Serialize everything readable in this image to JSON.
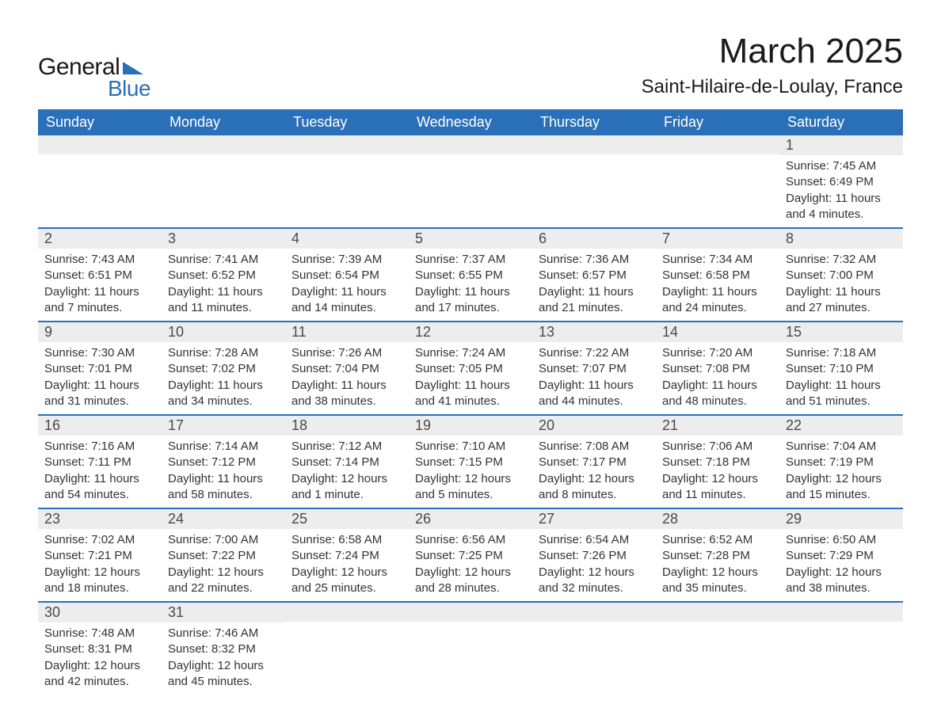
{
  "brand": {
    "word1": "General",
    "word2": "Blue",
    "triangle_color": "#2a70b8",
    "text_dark": "#1a1a1a"
  },
  "header": {
    "month_title": "March 2025",
    "location": "Saint-Hilaire-de-Loulay, France"
  },
  "style": {
    "header_bg": "#2a70b8",
    "header_fg": "#ffffff",
    "band_bg": "#ededed",
    "rule_color": "#2a70b8",
    "body_text": "#333333",
    "day_fontsize": 18,
    "body_fontsize": 15
  },
  "day_headers": [
    "Sunday",
    "Monday",
    "Tuesday",
    "Wednesday",
    "Thursday",
    "Friday",
    "Saturday"
  ],
  "weeks": [
    [
      null,
      null,
      null,
      null,
      null,
      null,
      {
        "n": "1",
        "sr": "Sunrise: 7:45 AM",
        "ss": "Sunset: 6:49 PM",
        "dl": "Daylight: 11 hours and 4 minutes."
      }
    ],
    [
      {
        "n": "2",
        "sr": "Sunrise: 7:43 AM",
        "ss": "Sunset: 6:51 PM",
        "dl": "Daylight: 11 hours and 7 minutes."
      },
      {
        "n": "3",
        "sr": "Sunrise: 7:41 AM",
        "ss": "Sunset: 6:52 PM",
        "dl": "Daylight: 11 hours and 11 minutes."
      },
      {
        "n": "4",
        "sr": "Sunrise: 7:39 AM",
        "ss": "Sunset: 6:54 PM",
        "dl": "Daylight: 11 hours and 14 minutes."
      },
      {
        "n": "5",
        "sr": "Sunrise: 7:37 AM",
        "ss": "Sunset: 6:55 PM",
        "dl": "Daylight: 11 hours and 17 minutes."
      },
      {
        "n": "6",
        "sr": "Sunrise: 7:36 AM",
        "ss": "Sunset: 6:57 PM",
        "dl": "Daylight: 11 hours and 21 minutes."
      },
      {
        "n": "7",
        "sr": "Sunrise: 7:34 AM",
        "ss": "Sunset: 6:58 PM",
        "dl": "Daylight: 11 hours and 24 minutes."
      },
      {
        "n": "8",
        "sr": "Sunrise: 7:32 AM",
        "ss": "Sunset: 7:00 PM",
        "dl": "Daylight: 11 hours and 27 minutes."
      }
    ],
    [
      {
        "n": "9",
        "sr": "Sunrise: 7:30 AM",
        "ss": "Sunset: 7:01 PM",
        "dl": "Daylight: 11 hours and 31 minutes."
      },
      {
        "n": "10",
        "sr": "Sunrise: 7:28 AM",
        "ss": "Sunset: 7:02 PM",
        "dl": "Daylight: 11 hours and 34 minutes."
      },
      {
        "n": "11",
        "sr": "Sunrise: 7:26 AM",
        "ss": "Sunset: 7:04 PM",
        "dl": "Daylight: 11 hours and 38 minutes."
      },
      {
        "n": "12",
        "sr": "Sunrise: 7:24 AM",
        "ss": "Sunset: 7:05 PM",
        "dl": "Daylight: 11 hours and 41 minutes."
      },
      {
        "n": "13",
        "sr": "Sunrise: 7:22 AM",
        "ss": "Sunset: 7:07 PM",
        "dl": "Daylight: 11 hours and 44 minutes."
      },
      {
        "n": "14",
        "sr": "Sunrise: 7:20 AM",
        "ss": "Sunset: 7:08 PM",
        "dl": "Daylight: 11 hours and 48 minutes."
      },
      {
        "n": "15",
        "sr": "Sunrise: 7:18 AM",
        "ss": "Sunset: 7:10 PM",
        "dl": "Daylight: 11 hours and 51 minutes."
      }
    ],
    [
      {
        "n": "16",
        "sr": "Sunrise: 7:16 AM",
        "ss": "Sunset: 7:11 PM",
        "dl": "Daylight: 11 hours and 54 minutes."
      },
      {
        "n": "17",
        "sr": "Sunrise: 7:14 AM",
        "ss": "Sunset: 7:12 PM",
        "dl": "Daylight: 11 hours and 58 minutes."
      },
      {
        "n": "18",
        "sr": "Sunrise: 7:12 AM",
        "ss": "Sunset: 7:14 PM",
        "dl": "Daylight: 12 hours and 1 minute."
      },
      {
        "n": "19",
        "sr": "Sunrise: 7:10 AM",
        "ss": "Sunset: 7:15 PM",
        "dl": "Daylight: 12 hours and 5 minutes."
      },
      {
        "n": "20",
        "sr": "Sunrise: 7:08 AM",
        "ss": "Sunset: 7:17 PM",
        "dl": "Daylight: 12 hours and 8 minutes."
      },
      {
        "n": "21",
        "sr": "Sunrise: 7:06 AM",
        "ss": "Sunset: 7:18 PM",
        "dl": "Daylight: 12 hours and 11 minutes."
      },
      {
        "n": "22",
        "sr": "Sunrise: 7:04 AM",
        "ss": "Sunset: 7:19 PM",
        "dl": "Daylight: 12 hours and 15 minutes."
      }
    ],
    [
      {
        "n": "23",
        "sr": "Sunrise: 7:02 AM",
        "ss": "Sunset: 7:21 PM",
        "dl": "Daylight: 12 hours and 18 minutes."
      },
      {
        "n": "24",
        "sr": "Sunrise: 7:00 AM",
        "ss": "Sunset: 7:22 PM",
        "dl": "Daylight: 12 hours and 22 minutes."
      },
      {
        "n": "25",
        "sr": "Sunrise: 6:58 AM",
        "ss": "Sunset: 7:24 PM",
        "dl": "Daylight: 12 hours and 25 minutes."
      },
      {
        "n": "26",
        "sr": "Sunrise: 6:56 AM",
        "ss": "Sunset: 7:25 PM",
        "dl": "Daylight: 12 hours and 28 minutes."
      },
      {
        "n": "27",
        "sr": "Sunrise: 6:54 AM",
        "ss": "Sunset: 7:26 PM",
        "dl": "Daylight: 12 hours and 32 minutes."
      },
      {
        "n": "28",
        "sr": "Sunrise: 6:52 AM",
        "ss": "Sunset: 7:28 PM",
        "dl": "Daylight: 12 hours and 35 minutes."
      },
      {
        "n": "29",
        "sr": "Sunrise: 6:50 AM",
        "ss": "Sunset: 7:29 PM",
        "dl": "Daylight: 12 hours and 38 minutes."
      }
    ],
    [
      {
        "n": "30",
        "sr": "Sunrise: 7:48 AM",
        "ss": "Sunset: 8:31 PM",
        "dl": "Daylight: 12 hours and 42 minutes."
      },
      {
        "n": "31",
        "sr": "Sunrise: 7:46 AM",
        "ss": "Sunset: 8:32 PM",
        "dl": "Daylight: 12 hours and 45 minutes."
      },
      null,
      null,
      null,
      null,
      null
    ]
  ]
}
